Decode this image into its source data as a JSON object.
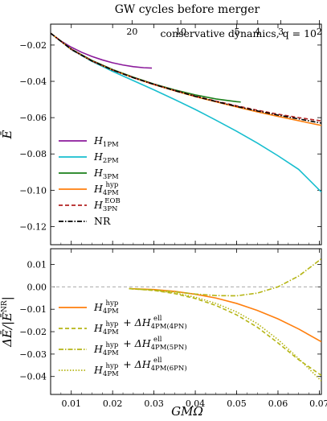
{
  "top_axis": {
    "title": "GW cycles before merger",
    "ticks": [
      {
        "label": "20",
        "x": 0.0247
      },
      {
        "label": "10",
        "x": 0.0365
      },
      {
        "label": "5",
        "x": 0.0501
      },
      {
        "label": "4",
        "x": 0.0551
      },
      {
        "label": "3",
        "x": 0.0607
      },
      {
        "label": "2",
        "x": 0.07
      }
    ]
  },
  "xlabel": "GMΩ",
  "chart_data": [
    {
      "type": "line",
      "panel": "top",
      "annotation": "conservative dynamics,  q = 10",
      "ylabel": "Ē",
      "xlim": [
        0.005,
        0.0705
      ],
      "ylim": [
        -0.13,
        -0.0085
      ],
      "x_ticks": [
        "0.01",
        "0.02",
        "0.03",
        "0.04",
        "0.05",
        "0.06",
        "0.07"
      ],
      "y_ticks": [
        "-0.02",
        "-0.04",
        "-0.06",
        "-0.08",
        "-0.10",
        "-0.12"
      ],
      "legend_position": "left",
      "series": [
        {
          "name": "H1PM",
          "label_main": "H",
          "label_sub": "1PM",
          "label_sup": "",
          "color": "#8b1a9b",
          "dash": "",
          "x": [
            0.005,
            0.0075,
            0.01,
            0.0125,
            0.015,
            0.0175,
            0.02,
            0.0225,
            0.025,
            0.0275,
            0.0295
          ],
          "y": [
            -0.0135,
            -0.0178,
            -0.0212,
            -0.024,
            -0.0263,
            -0.0282,
            -0.0298,
            -0.031,
            -0.0319,
            -0.0325,
            -0.0327
          ]
        },
        {
          "name": "H2PM",
          "label_main": "H",
          "label_sub": "2PM",
          "label_sup": "",
          "color": "#17becf",
          "dash": "",
          "x": [
            0.005,
            0.01,
            0.015,
            0.02,
            0.025,
            0.03,
            0.035,
            0.04,
            0.045,
            0.05,
            0.055,
            0.06,
            0.065,
            0.0705
          ],
          "y": [
            -0.0135,
            -0.0225,
            -0.029,
            -0.0345,
            -0.0396,
            -0.0447,
            -0.05,
            -0.0555,
            -0.0614,
            -0.0675,
            -0.074,
            -0.081,
            -0.0885,
            -0.101
          ]
        },
        {
          "name": "H3PM",
          "label_main": "H",
          "label_sub": "3PM",
          "label_sup": "",
          "color": "#1a7f1a",
          "dash": "",
          "x": [
            0.005,
            0.01,
            0.015,
            0.02,
            0.025,
            0.03,
            0.035,
            0.04,
            0.045,
            0.05,
            0.051
          ],
          "y": [
            -0.0135,
            -0.0222,
            -0.0285,
            -0.0335,
            -0.0377,
            -0.0415,
            -0.0447,
            -0.0475,
            -0.0497,
            -0.0512,
            -0.0514
          ]
        },
        {
          "name": "H4PM hyp",
          "label_main": "H",
          "label_sub": "4PM",
          "label_sup": "hyp",
          "color": "#ff7f0e",
          "dash": "",
          "x": [
            0.005,
            0.01,
            0.015,
            0.02,
            0.025,
            0.03,
            0.035,
            0.04,
            0.045,
            0.05,
            0.055,
            0.06,
            0.065,
            0.0705
          ],
          "y": [
            -0.0135,
            -0.0224,
            -0.0288,
            -0.0338,
            -0.038,
            -0.0418,
            -0.0452,
            -0.0484,
            -0.0513,
            -0.0541,
            -0.0568,
            -0.0593,
            -0.0617,
            -0.0643
          ]
        },
        {
          "name": "H3PN EOB",
          "label_main": "H",
          "label_sub": "3PN",
          "label_sup": "EOB",
          "color": "#b22222",
          "dash": "5,3",
          "x": [
            0.005,
            0.01,
            0.015,
            0.02,
            0.025,
            0.03,
            0.035,
            0.04,
            0.045,
            0.05,
            0.055,
            0.06,
            0.065,
            0.0705
          ],
          "y": [
            -0.0135,
            -0.0223,
            -0.0287,
            -0.0337,
            -0.0379,
            -0.0416,
            -0.045,
            -0.0481,
            -0.0509,
            -0.0535,
            -0.0559,
            -0.0581,
            -0.06,
            -0.0618
          ]
        },
        {
          "name": "NR",
          "label_main": "NR",
          "label_sub": "",
          "label_sup": "",
          "color": "#000000",
          "dash": "6,2,1.5,2",
          "x": [
            0.005,
            0.01,
            0.015,
            0.02,
            0.025,
            0.03,
            0.035,
            0.04,
            0.045,
            0.05,
            0.055,
            0.06,
            0.065,
            0.0705
          ],
          "y": [
            -0.0135,
            -0.0224,
            -0.0288,
            -0.0338,
            -0.038,
            -0.0417,
            -0.0451,
            -0.0483,
            -0.0511,
            -0.0538,
            -0.0563,
            -0.0586,
            -0.0607,
            -0.063
          ]
        }
      ]
    },
    {
      "type": "line",
      "panel": "bottom",
      "ylabel": "ΔĒ/|ĒNR|",
      "ylabel_main": "ΔĒ/|Ē",
      "ylabel_sup": "NR",
      "ylabel_end": "|",
      "xlim": [
        0.005,
        0.0705
      ],
      "ylim": [
        -0.048,
        0.017
      ],
      "x_ticks": [
        "0.01",
        "0.02",
        "0.03",
        "0.04",
        "0.05",
        "0.06",
        "0.07"
      ],
      "y_ticks": [
        "0.01",
        "0.00",
        "-0.01",
        "-0.02",
        "-0.03",
        "-0.04"
      ],
      "zero_line": true,
      "legend_position": "lower-left",
      "series": [
        {
          "name": "H4PM hyp",
          "label_main": "H",
          "label_sub": "4PM",
          "label_sup": "hyp",
          "extra": "",
          "extra_sub": "",
          "extra_sup": "",
          "color": "#ff7f0e",
          "dash": "",
          "x": [
            0.024,
            0.03,
            0.035,
            0.04,
            0.045,
            0.05,
            0.055,
            0.06,
            0.065,
            0.0705
          ],
          "y": [
            -0.0008,
            -0.0012,
            -0.002,
            -0.0033,
            -0.005,
            -0.0074,
            -0.0105,
            -0.0143,
            -0.0188,
            -0.0245
          ]
        },
        {
          "name": "H4PM hyp + ΔH4PM(4PN) ell",
          "label_main": "H",
          "label_sub": "4PM",
          "label_sup": "hyp",
          "extra": " + ΔH",
          "extra_sub": "4PM(4PN)",
          "extra_sup": "ell",
          "color": "#b5b515",
          "dash": "5,3",
          "x": [
            0.024,
            0.03,
            0.035,
            0.04,
            0.045,
            0.05,
            0.055,
            0.06,
            0.065,
            0.0705
          ],
          "y": [
            -0.0008,
            -0.0016,
            -0.003,
            -0.0052,
            -0.0083,
            -0.0125,
            -0.018,
            -0.025,
            -0.0325,
            -0.0395
          ]
        },
        {
          "name": "H4PM hyp + ΔH4PM(5PN) ell",
          "label_main": "H",
          "label_sub": "4PM",
          "label_sup": "hyp",
          "extra": " + ΔH",
          "extra_sub": "4PM(5PN)",
          "extra_sup": "ell",
          "color": "#b5b515",
          "dash": "6,2,1.5,2",
          "x": [
            0.024,
            0.03,
            0.035,
            0.04,
            0.045,
            0.05,
            0.055,
            0.06,
            0.065,
            0.0705
          ],
          "y": [
            -0.0008,
            -0.0014,
            -0.0022,
            -0.0032,
            -0.0039,
            -0.004,
            -0.0028,
            0.0,
            0.0048,
            0.0125
          ]
        },
        {
          "name": "H4PM hyp + ΔH4PM(6PN) ell",
          "label_main": "H",
          "label_sub": "4PM",
          "label_sup": "hyp",
          "extra": " + ΔH",
          "extra_sub": "4PM(6PN)",
          "extra_sup": "ell",
          "color": "#b5b515",
          "dash": "1.5,2",
          "x": [
            0.024,
            0.03,
            0.035,
            0.04,
            0.045,
            0.05,
            0.055,
            0.06,
            0.065,
            0.0705
          ],
          "y": [
            -0.0008,
            -0.0015,
            -0.0027,
            -0.0046,
            -0.0074,
            -0.0112,
            -0.0164,
            -0.0235,
            -0.032,
            -0.042
          ]
        }
      ]
    }
  ]
}
